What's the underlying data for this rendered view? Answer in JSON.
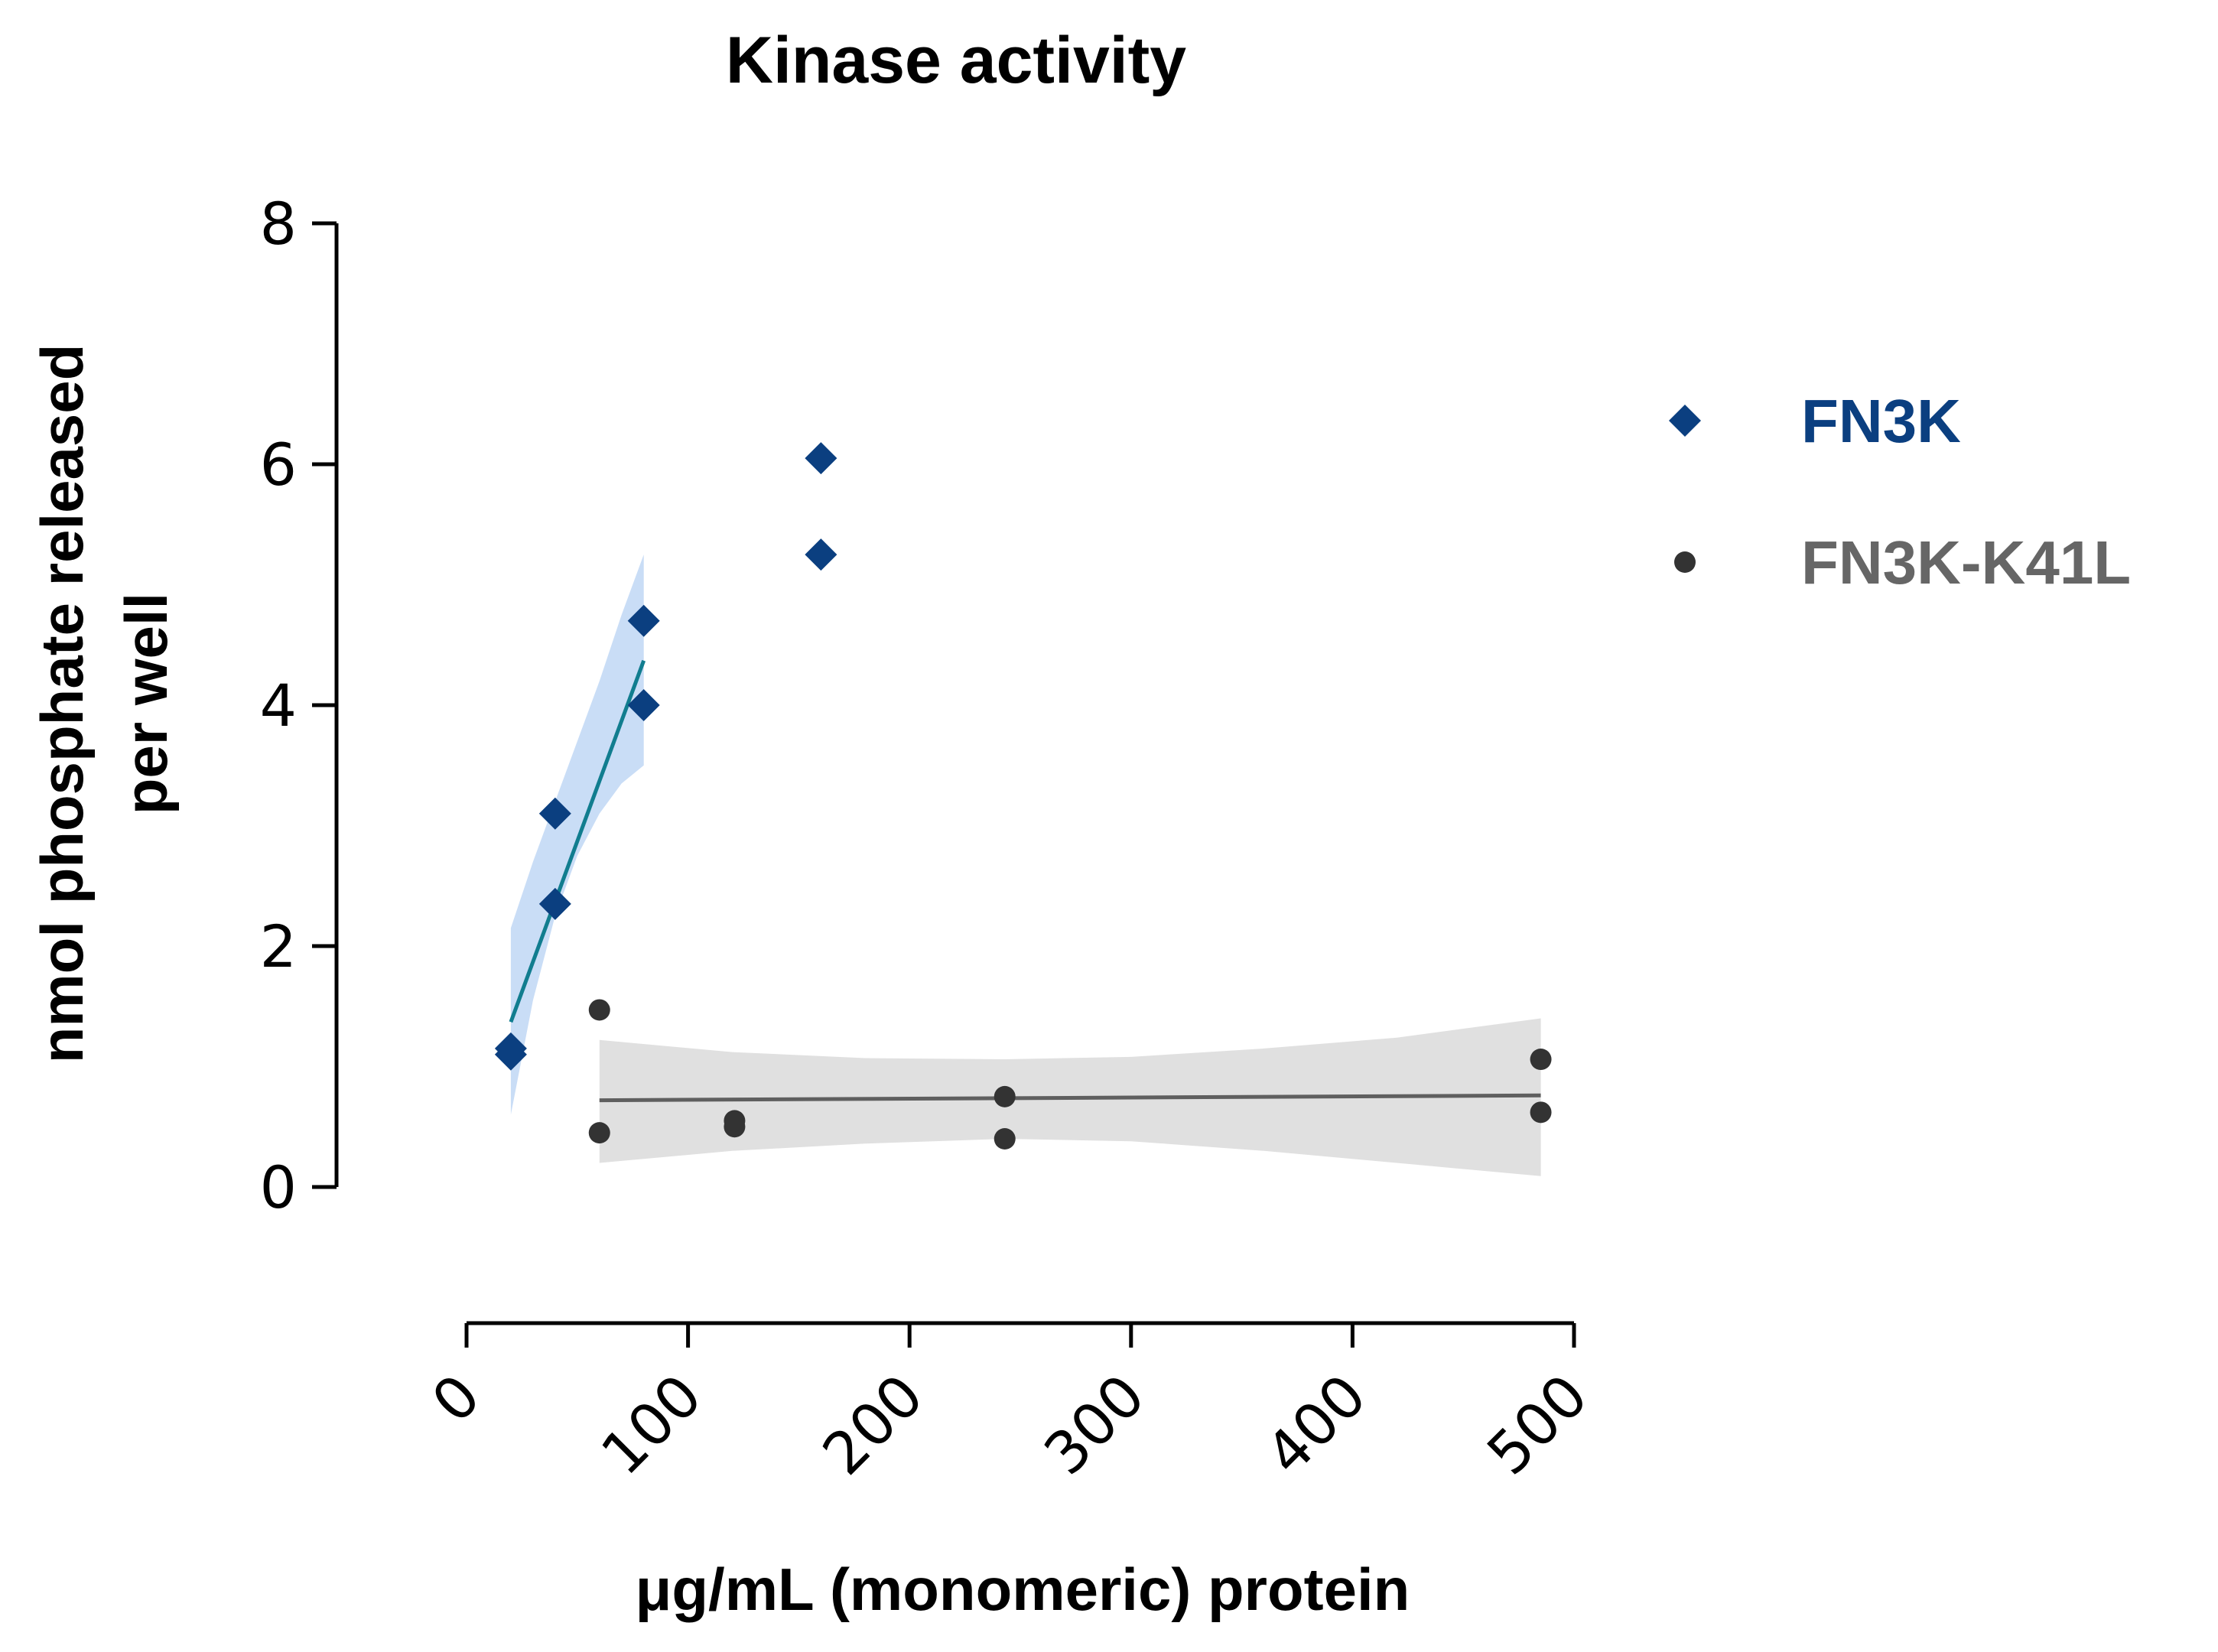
{
  "chart_data": {
    "type": "scatter",
    "title": "Kinase activity",
    "xlabel": "μg/mL (monomeric) protein",
    "ylabel_lines": [
      "nmol phosphate released",
      "per well"
    ],
    "xlim": [
      0,
      500
    ],
    "ylim": [
      0,
      8
    ],
    "x_ticks": [
      0,
      100,
      200,
      300,
      400,
      500
    ],
    "y_ticks": [
      0,
      2,
      4,
      6,
      8
    ],
    "grid": false,
    "legend_position": "right",
    "series": [
      {
        "name": "FN3K",
        "color": "#0b3f80",
        "band_color": "#c9ddf6",
        "fit_color": "#117d8f",
        "marker": "diamond",
        "points": [
          [
            20,
            1.1
          ],
          [
            20,
            1.15
          ],
          [
            40,
            3.1
          ],
          [
            40,
            2.35
          ],
          [
            80,
            4.7
          ],
          [
            80,
            4.0
          ],
          [
            160,
            6.05
          ],
          [
            160,
            5.25
          ]
        ],
        "fit": {
          "x": [
            20,
            80
          ],
          "y": [
            1.37,
            4.37
          ]
        },
        "band": {
          "x": [
            20,
            30,
            40,
            50,
            60,
            70,
            80
          ],
          "upper": [
            2.15,
            2.7,
            3.2,
            3.7,
            4.2,
            4.75,
            5.25
          ],
          "lower": [
            0.6,
            1.55,
            2.25,
            2.75,
            3.1,
            3.35,
            3.5
          ]
        }
      },
      {
        "name": "FN3K-K41L",
        "color": "#333333",
        "band_color": "#e0e0e0",
        "fit_color": "#5f5f5f",
        "legend_text_color": "#666666",
        "marker": "circle",
        "points": [
          [
            60,
            1.47
          ],
          [
            60,
            0.45
          ],
          [
            121,
            0.5
          ],
          [
            121,
            0.55
          ],
          [
            243,
            0.75
          ],
          [
            243,
            0.4
          ],
          [
            485,
            1.06
          ],
          [
            485,
            0.62
          ]
        ],
        "fit": {
          "x": [
            60,
            485
          ],
          "y": [
            0.72,
            0.76
          ]
        },
        "band": {
          "x": [
            60,
            120,
            180,
            243,
            300,
            360,
            420,
            485
          ],
          "upper": [
            1.22,
            1.12,
            1.07,
            1.06,
            1.08,
            1.15,
            1.24,
            1.4
          ],
          "lower": [
            0.2,
            0.3,
            0.36,
            0.4,
            0.38,
            0.3,
            0.2,
            0.09
          ]
        }
      }
    ]
  }
}
